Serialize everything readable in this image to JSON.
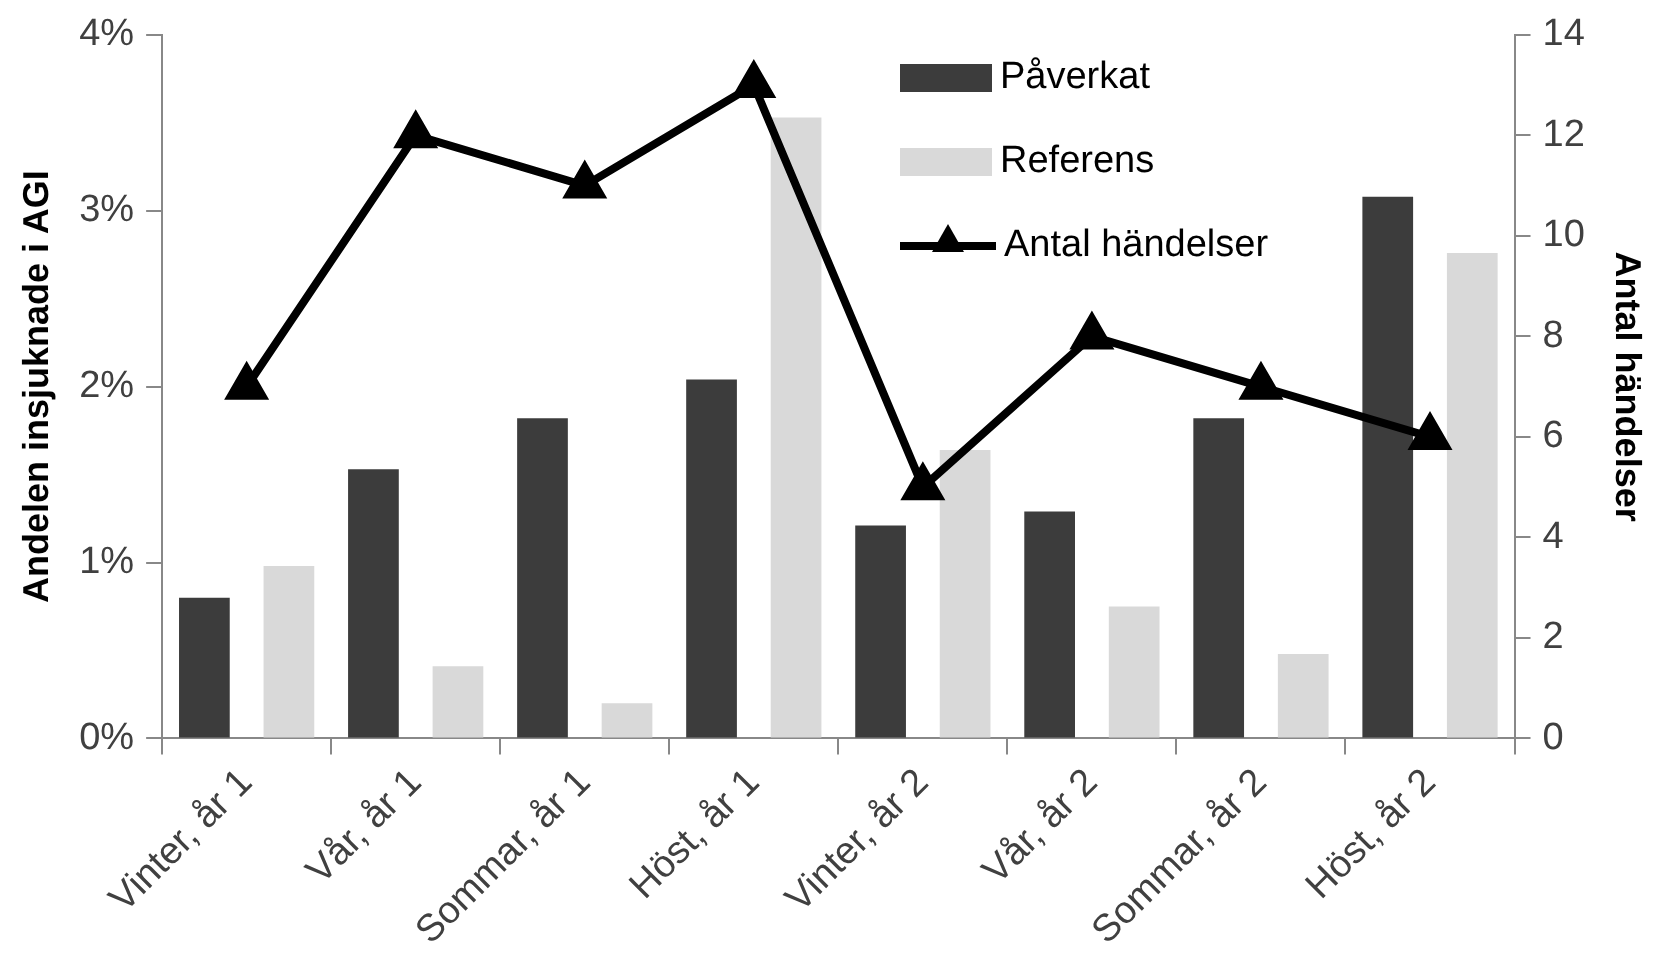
{
  "chart_data": {
    "type": "bar",
    "ylabel": "Andelen insjuknade i AGI",
    "y2label": "Antal händelser",
    "categories": [
      "Vinter, år 1",
      "Vår, år 1",
      "Sommar, år 1",
      "Höst, år 1",
      "Vinter, år 2",
      "Vår, år 2",
      "Sommar, år 2",
      "Höst, år 2"
    ],
    "series": [
      {
        "name": "Påverkat",
        "color": "#3c3c3c",
        "values": [
          0.8,
          1.53,
          1.82,
          2.04,
          1.21,
          1.29,
          1.82,
          3.08
        ]
      },
      {
        "name": "Referens",
        "color": "#d9d9d9",
        "values": [
          0.98,
          0.41,
          0.2,
          3.53,
          1.64,
          0.75,
          0.48,
          2.76
        ]
      },
      {
        "name": "Antal händelser",
        "type": "line",
        "axis": "y2",
        "color": "#000000",
        "marker": "triangle",
        "values": [
          7,
          12,
          11,
          13,
          5,
          8,
          7,
          6
        ]
      }
    ],
    "ylim": [
      0,
      4
    ],
    "yticks": [
      {
        "value": 0,
        "label": "0%"
      },
      {
        "value": 1,
        "label": "1%"
      },
      {
        "value": 2,
        "label": "2%"
      },
      {
        "value": 3,
        "label": "3%"
      },
      {
        "value": 4,
        "label": "4%"
      }
    ],
    "y2lim": [
      0,
      14
    ],
    "y2ticks": [
      0,
      2,
      4,
      6,
      8,
      10,
      12,
      14
    ],
    "grid": false,
    "legend": "top right"
  }
}
